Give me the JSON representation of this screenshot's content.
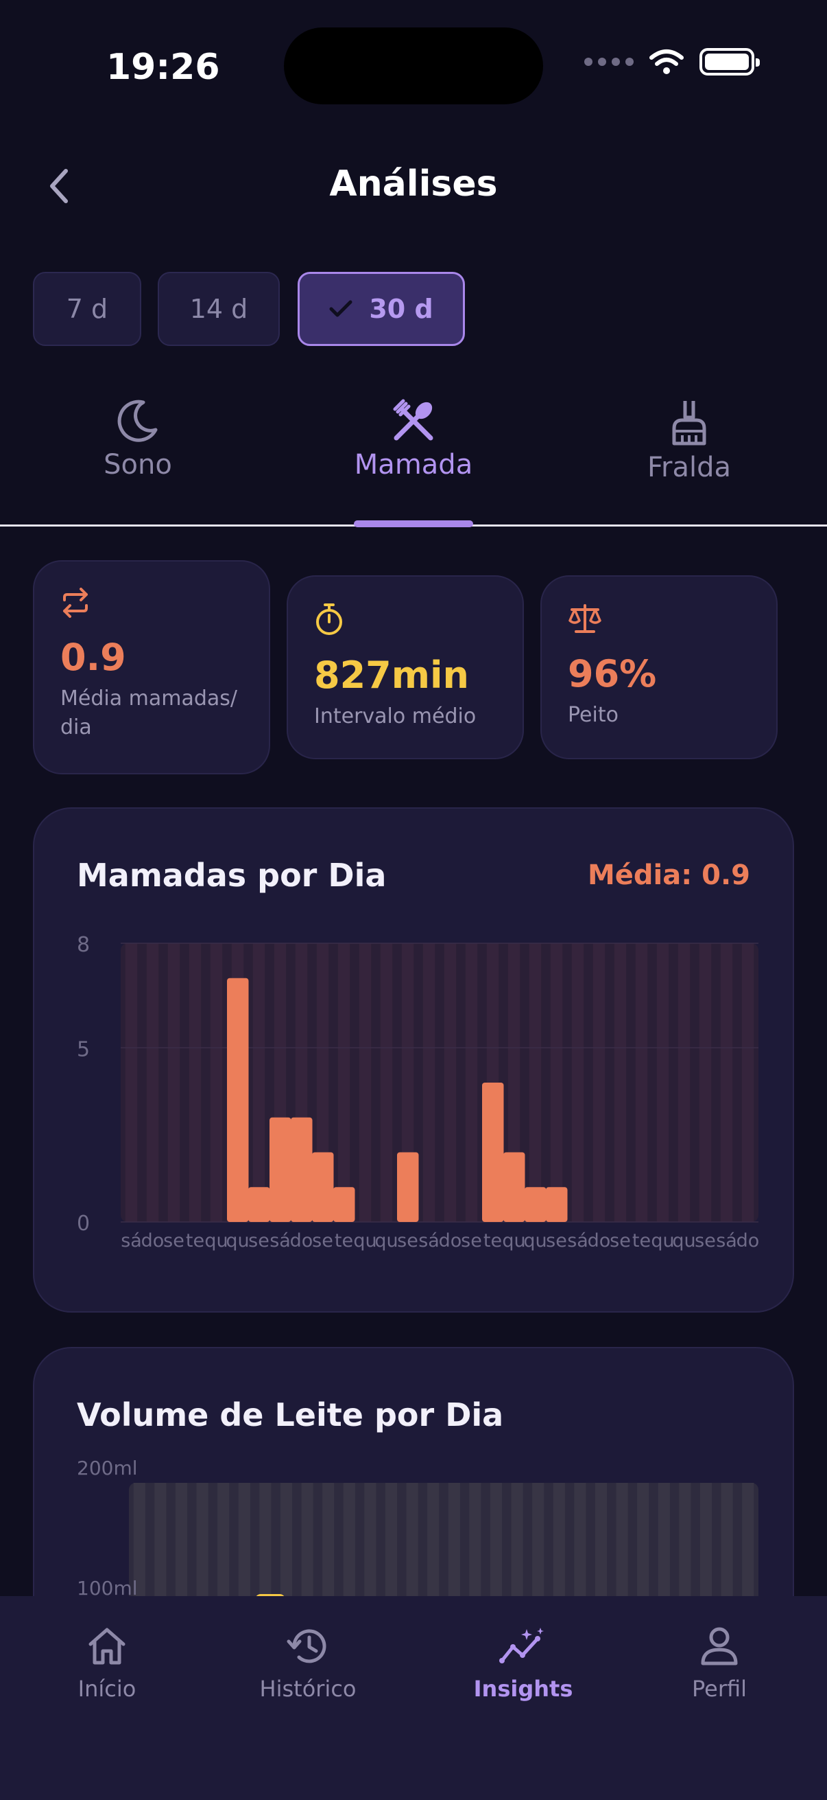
{
  "status_bar": {
    "time": "19:26"
  },
  "header": {
    "title": "Análises"
  },
  "range_chips": [
    {
      "label": "7 d",
      "selected": false
    },
    {
      "label": "14 d",
      "selected": false
    },
    {
      "label": "30 d",
      "selected": true
    }
  ],
  "category_tabs": [
    {
      "label": "Sono",
      "icon": "moon-icon",
      "active": false
    },
    {
      "label": "Mamada",
      "icon": "utensils-icon",
      "active": true
    },
    {
      "label": "Fralda",
      "icon": "broom-icon",
      "active": false
    }
  ],
  "stats": [
    {
      "value": "0.9",
      "label": "Média mamadas/ dia",
      "icon": "repeat-icon",
      "color": "#ec7e5a"
    },
    {
      "value": "827min",
      "label": "Intervalo médio",
      "icon": "stopwatch-icon",
      "color": "#f6c945"
    },
    {
      "value": "96%",
      "label": "Peito",
      "icon": "scale-icon",
      "color": "#ec7e5a"
    }
  ],
  "feedings_chart": {
    "title": "Mamadas por Dia",
    "average_label": "Média: 0.9"
  },
  "milk_chart": {
    "title": "Volume de Leite por Dia"
  },
  "chart_data": [
    {
      "type": "bar",
      "title": "Mamadas por Dia",
      "y_ticks": [
        "8",
        "5",
        "0"
      ],
      "ylim": [
        0,
        8
      ],
      "categories": [
        "sá",
        "do",
        "se",
        "te",
        "qu",
        "qu",
        "se",
        "sá",
        "do",
        "se",
        "te",
        "qu",
        "qu",
        "se",
        "sá",
        "do",
        "se",
        "te",
        "qu",
        "qu",
        "se",
        "sá",
        "do",
        "se",
        "te",
        "qu",
        "qu",
        "se",
        "sá",
        "do"
      ],
      "values": [
        0,
        0,
        0,
        0,
        0,
        7,
        1,
        3,
        3,
        2,
        1,
        0,
        0,
        2,
        0,
        0,
        0,
        4,
        2,
        1,
        1,
        0,
        0,
        0,
        0,
        0,
        0,
        0,
        0,
        0
      ],
      "color": "#ec7e5a"
    },
    {
      "type": "bar",
      "title": "Volume de Leite por Dia",
      "y_ticks": [
        "200ml",
        "100ml"
      ],
      "color": "#f6c945"
    }
  ],
  "bottom_nav": [
    {
      "label": "Início",
      "icon": "home-icon",
      "active": false
    },
    {
      "label": "Histórico",
      "icon": "history-icon",
      "active": false
    },
    {
      "label": "Insights",
      "icon": "insights-icon",
      "active": true
    },
    {
      "label": "Perfil",
      "icon": "user-icon",
      "active": false
    }
  ]
}
